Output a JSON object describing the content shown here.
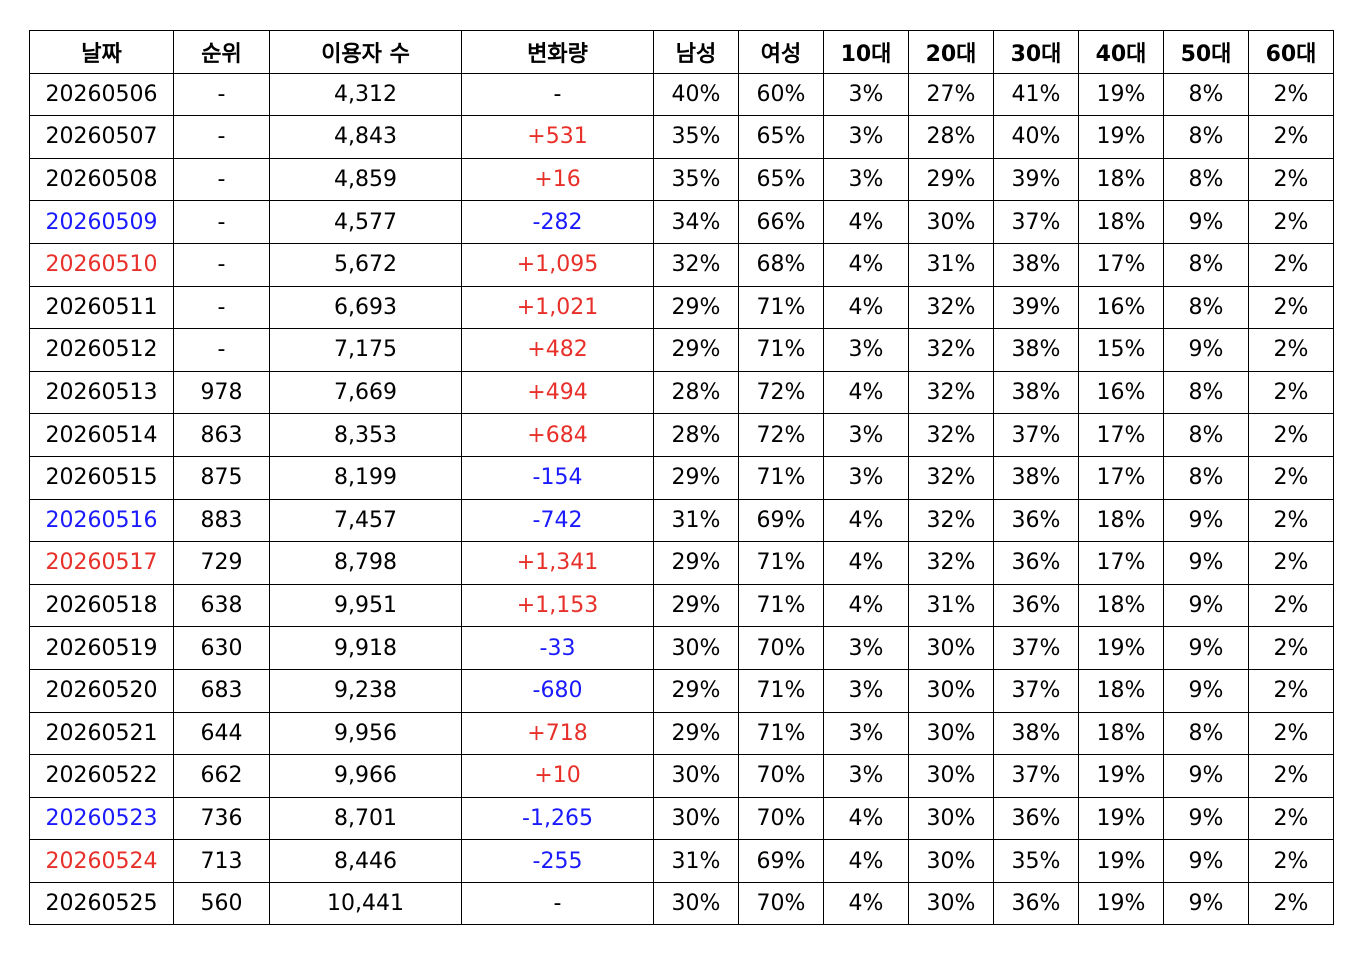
{
  "colors": {
    "increase": "#e8302a",
    "decrease": "#1a1aff",
    "weekend_blue": "#1a1aff",
    "weekend_red": "#e8302a",
    "text": "#000000",
    "border": "#000000"
  },
  "headers": [
    "날짜",
    "순위",
    "이용자 수",
    "변화량",
    "남성",
    "여성",
    "10대",
    "20대",
    "30대",
    "40대",
    "50대",
    "60대"
  ],
  "rows": [
    {
      "date": "20260506",
      "date_color": "default",
      "rank": "-",
      "users": "4,312",
      "change": "-",
      "change_color": "default",
      "male": "40%",
      "female": "60%",
      "age10": "3%",
      "age20": "27%",
      "age30": "41%",
      "age40": "19%",
      "age50": "8%",
      "age60": "2%"
    },
    {
      "date": "20260507",
      "date_color": "default",
      "rank": "-",
      "users": "4,843",
      "change": "+531",
      "change_color": "red",
      "male": "35%",
      "female": "65%",
      "age10": "3%",
      "age20": "28%",
      "age30": "40%",
      "age40": "19%",
      "age50": "8%",
      "age60": "2%"
    },
    {
      "date": "20260508",
      "date_color": "default",
      "rank": "-",
      "users": "4,859",
      "change": "+16",
      "change_color": "red",
      "male": "35%",
      "female": "65%",
      "age10": "3%",
      "age20": "29%",
      "age30": "39%",
      "age40": "18%",
      "age50": "8%",
      "age60": "2%"
    },
    {
      "date": "20260509",
      "date_color": "blue",
      "rank": "-",
      "users": "4,577",
      "change": "-282",
      "change_color": "blue",
      "male": "34%",
      "female": "66%",
      "age10": "4%",
      "age20": "30%",
      "age30": "37%",
      "age40": "18%",
      "age50": "9%",
      "age60": "2%"
    },
    {
      "date": "20260510",
      "date_color": "red",
      "rank": "-",
      "users": "5,672",
      "change": "+1,095",
      "change_color": "red",
      "male": "32%",
      "female": "68%",
      "age10": "4%",
      "age20": "31%",
      "age30": "38%",
      "age40": "17%",
      "age50": "8%",
      "age60": "2%"
    },
    {
      "date": "20260511",
      "date_color": "default",
      "rank": "-",
      "users": "6,693",
      "change": "+1,021",
      "change_color": "red",
      "male": "29%",
      "female": "71%",
      "age10": "4%",
      "age20": "32%",
      "age30": "39%",
      "age40": "16%",
      "age50": "8%",
      "age60": "2%"
    },
    {
      "date": "20260512",
      "date_color": "default",
      "rank": "-",
      "users": "7,175",
      "change": "+482",
      "change_color": "red",
      "male": "29%",
      "female": "71%",
      "age10": "3%",
      "age20": "32%",
      "age30": "38%",
      "age40": "15%",
      "age50": "9%",
      "age60": "2%"
    },
    {
      "date": "20260513",
      "date_color": "default",
      "rank": "978",
      "users": "7,669",
      "change": "+494",
      "change_color": "red",
      "male": "28%",
      "female": "72%",
      "age10": "4%",
      "age20": "32%",
      "age30": "38%",
      "age40": "16%",
      "age50": "8%",
      "age60": "2%"
    },
    {
      "date": "20260514",
      "date_color": "default",
      "rank": "863",
      "users": "8,353",
      "change": "+684",
      "change_color": "red",
      "male": "28%",
      "female": "72%",
      "age10": "3%",
      "age20": "32%",
      "age30": "37%",
      "age40": "17%",
      "age50": "8%",
      "age60": "2%"
    },
    {
      "date": "20260515",
      "date_color": "default",
      "rank": "875",
      "users": "8,199",
      "change": "-154",
      "change_color": "blue",
      "male": "29%",
      "female": "71%",
      "age10": "3%",
      "age20": "32%",
      "age30": "38%",
      "age40": "17%",
      "age50": "8%",
      "age60": "2%"
    },
    {
      "date": "20260516",
      "date_color": "blue",
      "rank": "883",
      "users": "7,457",
      "change": "-742",
      "change_color": "blue",
      "male": "31%",
      "female": "69%",
      "age10": "4%",
      "age20": "32%",
      "age30": "36%",
      "age40": "18%",
      "age50": "9%",
      "age60": "2%"
    },
    {
      "date": "20260517",
      "date_color": "red",
      "rank": "729",
      "users": "8,798",
      "change": "+1,341",
      "change_color": "red",
      "male": "29%",
      "female": "71%",
      "age10": "4%",
      "age20": "32%",
      "age30": "36%",
      "age40": "17%",
      "age50": "9%",
      "age60": "2%"
    },
    {
      "date": "20260518",
      "date_color": "default",
      "rank": "638",
      "users": "9,951",
      "change": "+1,153",
      "change_color": "red",
      "male": "29%",
      "female": "71%",
      "age10": "4%",
      "age20": "31%",
      "age30": "36%",
      "age40": "18%",
      "age50": "9%",
      "age60": "2%"
    },
    {
      "date": "20260519",
      "date_color": "default",
      "rank": "630",
      "users": "9,918",
      "change": "-33",
      "change_color": "blue",
      "male": "30%",
      "female": "70%",
      "age10": "3%",
      "age20": "30%",
      "age30": "37%",
      "age40": "19%",
      "age50": "9%",
      "age60": "2%"
    },
    {
      "date": "20260520",
      "date_color": "default",
      "rank": "683",
      "users": "9,238",
      "change": "-680",
      "change_color": "blue",
      "male": "29%",
      "female": "71%",
      "age10": "3%",
      "age20": "30%",
      "age30": "37%",
      "age40": "18%",
      "age50": "9%",
      "age60": "2%"
    },
    {
      "date": "20260521",
      "date_color": "default",
      "rank": "644",
      "users": "9,956",
      "change": "+718",
      "change_color": "red",
      "male": "29%",
      "female": "71%",
      "age10": "3%",
      "age20": "30%",
      "age30": "38%",
      "age40": "18%",
      "age50": "8%",
      "age60": "2%"
    },
    {
      "date": "20260522",
      "date_color": "default",
      "rank": "662",
      "users": "9,966",
      "change": "+10",
      "change_color": "red",
      "male": "30%",
      "female": "70%",
      "age10": "3%",
      "age20": "30%",
      "age30": "37%",
      "age40": "19%",
      "age50": "9%",
      "age60": "2%"
    },
    {
      "date": "20260523",
      "date_color": "blue",
      "rank": "736",
      "users": "8,701",
      "change": "-1,265",
      "change_color": "blue",
      "male": "30%",
      "female": "70%",
      "age10": "4%",
      "age20": "30%",
      "age30": "36%",
      "age40": "19%",
      "age50": "9%",
      "age60": "2%"
    },
    {
      "date": "20260524",
      "date_color": "red",
      "rank": "713",
      "users": "8,446",
      "change": "-255",
      "change_color": "blue",
      "male": "31%",
      "female": "69%",
      "age10": "4%",
      "age20": "30%",
      "age30": "35%",
      "age40": "19%",
      "age50": "9%",
      "age60": "2%"
    },
    {
      "date": "20260525",
      "date_color": "default",
      "rank": "560",
      "users": "10,441",
      "change": "-",
      "change_color": "default",
      "male": "30%",
      "female": "70%",
      "age10": "4%",
      "age20": "30%",
      "age30": "36%",
      "age40": "19%",
      "age50": "9%",
      "age60": "2%"
    }
  ]
}
